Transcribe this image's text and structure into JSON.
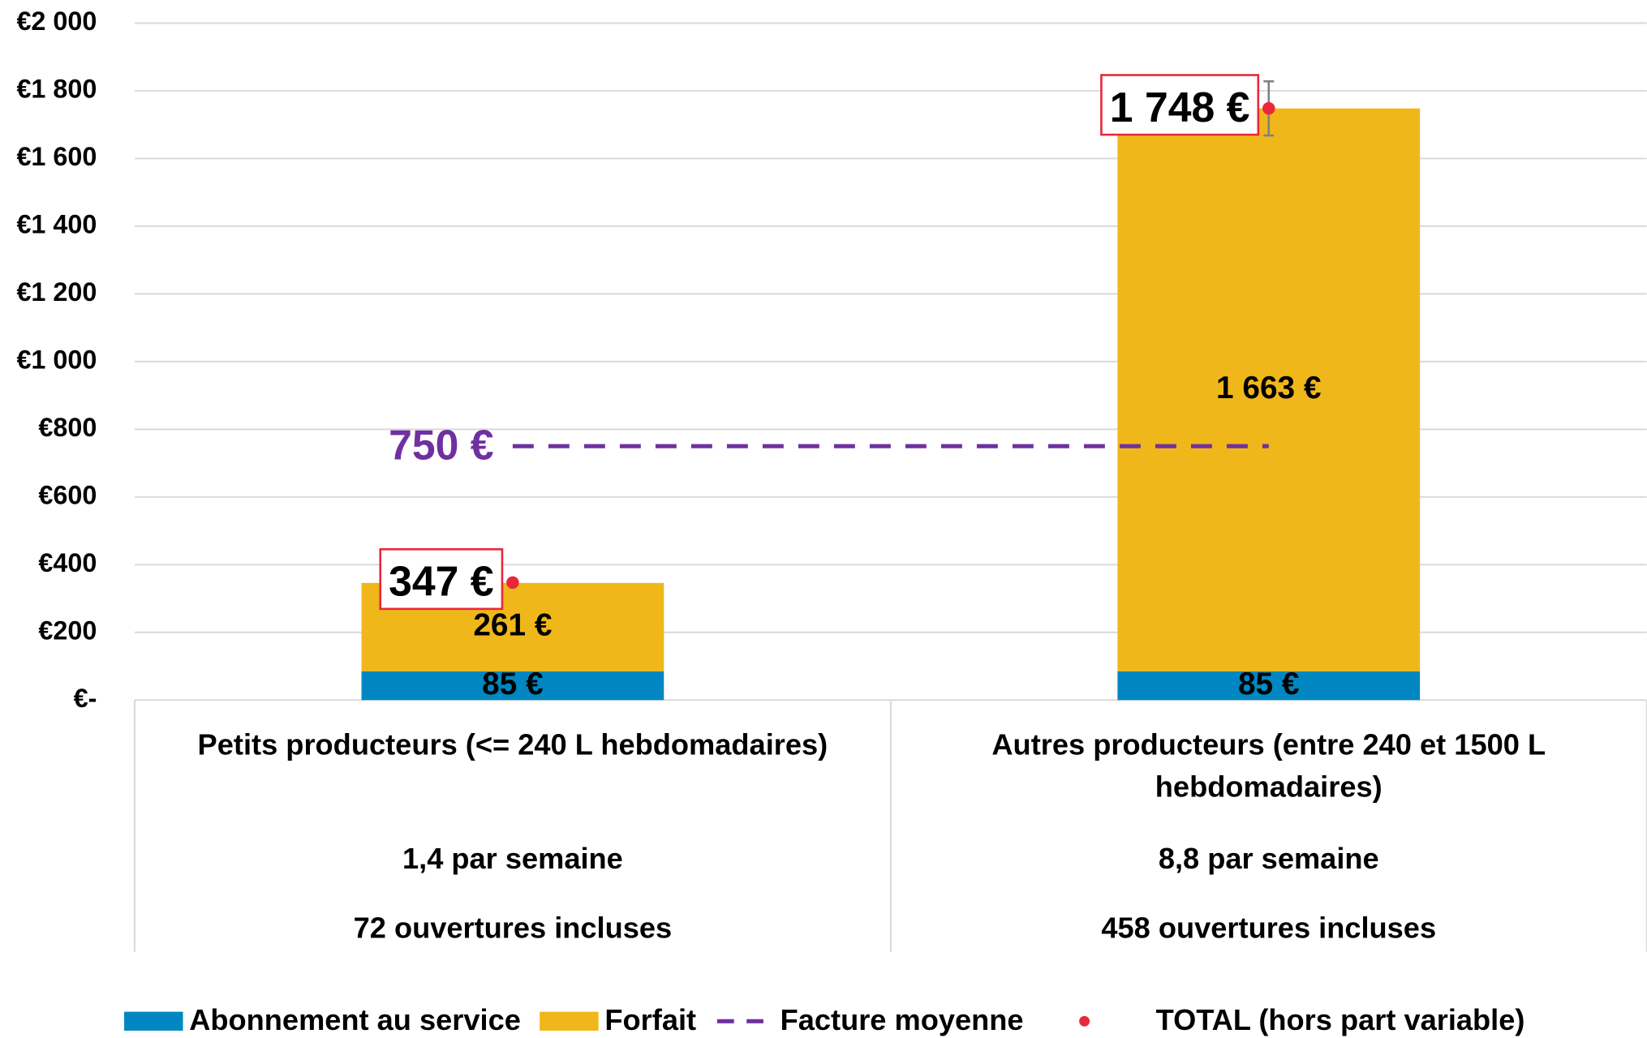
{
  "chart_data": {
    "type": "bar",
    "stacked": true,
    "categories": [
      "Petits producteurs  (<= 240 L hebdomadaires)",
      "Autres producteurs (entre 240 et 1500 L hebdomadaires)"
    ],
    "category_frequency": [
      "1,4 par semaine",
      "8,8 par semaine"
    ],
    "category_included": [
      "72 ouvertures incluses",
      "458 ouvertures incluses"
    ],
    "series": [
      {
        "name": "Abonnement au service",
        "type": "bar",
        "color": "#0087c1",
        "values": [
          85,
          85
        ],
        "value_labels": [
          "85 €",
          "85 €"
        ]
      },
      {
        "name": "Forfait",
        "type": "bar",
        "color": "#f0b71a",
        "values": [
          261,
          1663
        ],
        "value_labels": [
          "261 €",
          "1 663 €"
        ]
      },
      {
        "name": "Facture moyenne",
        "type": "line",
        "color": "#7030a0",
        "values": [
          750,
          750
        ],
        "value_labels": [
          "750 €",
          null
        ]
      },
      {
        "name": "TOTAL (hors part variable)",
        "type": "scatter",
        "color": "#e8283a",
        "values": [
          347,
          1748
        ],
        "value_labels": [
          "347 €",
          "1 748 €"
        ],
        "errors": [
          0,
          80
        ]
      }
    ],
    "ylim": [
      0,
      2000
    ],
    "yticks": [
      {
        "value": 0,
        "label": "€-"
      },
      {
        "value": 200,
        "label": "€200"
      },
      {
        "value": 400,
        "label": "€400"
      },
      {
        "value": 600,
        "label": "€600"
      },
      {
        "value": 800,
        "label": "€800"
      },
      {
        "value": 1000,
        "label": "€1 000"
      },
      {
        "value": 1200,
        "label": "€1 200"
      },
      {
        "value": 1400,
        "label": "€1 400"
      },
      {
        "value": 1600,
        "label": "€1 600"
      },
      {
        "value": 1800,
        "label": "€1 800"
      },
      {
        "value": 2000,
        "label": "€2 000"
      }
    ],
    "grid": true,
    "legend": "bottom"
  }
}
